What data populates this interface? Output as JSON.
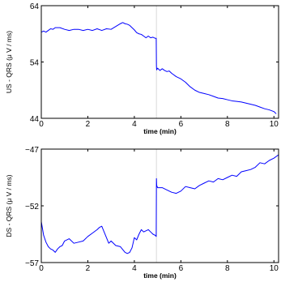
{
  "chart_data": [
    {
      "type": "line",
      "xlabel": "time (min)",
      "ylabel": "US - QRS (μ V / ms)",
      "xlim": [
        0,
        10.2
      ],
      "ylim": [
        44,
        64
      ],
      "xticks": [
        0,
        2,
        4,
        6,
        8,
        10
      ],
      "yticks": [
        44,
        54,
        64
      ],
      "xtick_labels": [
        "0",
        "2",
        "4",
        "6",
        "8",
        "10"
      ],
      "ytick_labels": [
        "44",
        "54",
        "64"
      ],
      "event_line_x": 4.95,
      "series_color": "#0000ff",
      "series": [
        {
          "x": [
            0,
            0.1,
            0.2,
            0.3,
            0.4,
            0.5,
            0.6,
            0.8,
            1.0,
            1.2,
            1.4,
            1.6,
            1.8,
            2.0,
            2.2,
            2.4,
            2.6,
            2.8,
            3.0,
            3.2,
            3.4,
            3.5,
            3.6,
            3.7,
            3.8,
            3.9,
            4.0,
            4.1,
            4.2,
            4.3,
            4.4,
            4.5,
            4.6,
            4.7,
            4.8,
            4.9,
            4.94,
            4.95,
            4.96,
            5.0,
            5.1,
            5.2,
            5.3,
            5.4,
            5.5,
            5.6,
            5.8,
            6.0,
            6.2,
            6.4,
            6.6,
            6.8,
            7.0,
            7.2,
            7.4,
            7.6,
            7.8,
            8.0,
            8.2,
            8.4,
            8.6,
            8.8,
            9.0,
            9.2,
            9.4,
            9.6,
            9.8,
            10.0,
            10.1
          ],
          "y": [
            59.3,
            59.5,
            59.3,
            59.6,
            59.9,
            59.8,
            60.1,
            60.1,
            59.8,
            59.6,
            59.8,
            59.8,
            59.6,
            59.8,
            59.6,
            59.9,
            59.6,
            59.9,
            59.8,
            60.3,
            60.8,
            61.0,
            60.8,
            60.7,
            60.5,
            60.1,
            59.7,
            59.2,
            59.0,
            58.9,
            58.6,
            58.3,
            58.6,
            58.3,
            58.4,
            58.2,
            58.2,
            53.3,
            52.6,
            52.9,
            52.5,
            52.8,
            52.5,
            52.3,
            52.4,
            52.0,
            51.4,
            51.0,
            50.4,
            49.6,
            49.0,
            48.6,
            48.4,
            48.2,
            47.9,
            47.6,
            47.5,
            47.3,
            47.1,
            47.0,
            46.9,
            46.7,
            46.5,
            46.3,
            46.0,
            45.7,
            45.5,
            45.2,
            44.8
          ]
        }
      ]
    },
    {
      "type": "line",
      "xlabel": "time (min)",
      "ylabel": "DS - QRS (μ V / ms)",
      "xlim": [
        0,
        10.2
      ],
      "ylim": [
        -57,
        -47
      ],
      "xticks": [
        0,
        2,
        4,
        6,
        8,
        10
      ],
      "yticks": [
        -57,
        -52,
        -47
      ],
      "xtick_labels": [
        "0",
        "2",
        "4",
        "6",
        "8",
        "10"
      ],
      "ytick_labels": [
        "−57",
        "−52",
        "−47"
      ],
      "event_line_x": 4.95,
      "series_color": "#0000ff",
      "series": [
        {
          "x": [
            0,
            0.05,
            0.1,
            0.2,
            0.3,
            0.4,
            0.5,
            0.6,
            0.7,
            0.8,
            0.9,
            1.0,
            1.2,
            1.4,
            1.6,
            1.8,
            2.0,
            2.2,
            2.4,
            2.5,
            2.6,
            2.7,
            2.8,
            2.9,
            3.0,
            3.2,
            3.4,
            3.6,
            3.7,
            3.8,
            3.9,
            4.0,
            4.1,
            4.2,
            4.3,
            4.4,
            4.5,
            4.6,
            4.7,
            4.8,
            4.9,
            4.94,
            4.95,
            4.96,
            5.0,
            5.2,
            5.4,
            5.6,
            5.8,
            6.0,
            6.2,
            6.4,
            6.6,
            6.8,
            7.0,
            7.2,
            7.4,
            7.6,
            7.8,
            8.0,
            8.2,
            8.4,
            8.6,
            8.8,
            9.0,
            9.2,
            9.4,
            9.6,
            9.8,
            10.0,
            10.2
          ],
          "y": [
            -53.4,
            -54.0,
            -54.6,
            -55.2,
            -55.6,
            -55.8,
            -55.9,
            -56.1,
            -55.8,
            -55.6,
            -55.5,
            -55.1,
            -54.9,
            -55.3,
            -55.2,
            -55.1,
            -54.7,
            -54.4,
            -54.1,
            -53.9,
            -53.8,
            -54.3,
            -54.8,
            -55.3,
            -55.1,
            -55.5,
            -55.6,
            -56.1,
            -56.2,
            -56.1,
            -55.7,
            -54.8,
            -55.0,
            -54.5,
            -54.1,
            -54.3,
            -54.2,
            -54.1,
            -54.3,
            -54.5,
            -54.6,
            -54.7,
            -49.6,
            -50.2,
            -50.4,
            -50.4,
            -50.6,
            -50.8,
            -50.9,
            -50.7,
            -50.3,
            -50.4,
            -50.5,
            -50.2,
            -50.0,
            -49.8,
            -49.9,
            -49.6,
            -49.7,
            -49.5,
            -49.3,
            -49.4,
            -49.0,
            -48.9,
            -48.8,
            -48.6,
            -48.2,
            -48.3,
            -48.0,
            -47.8,
            -47.5
          ]
        }
      ]
    }
  ]
}
